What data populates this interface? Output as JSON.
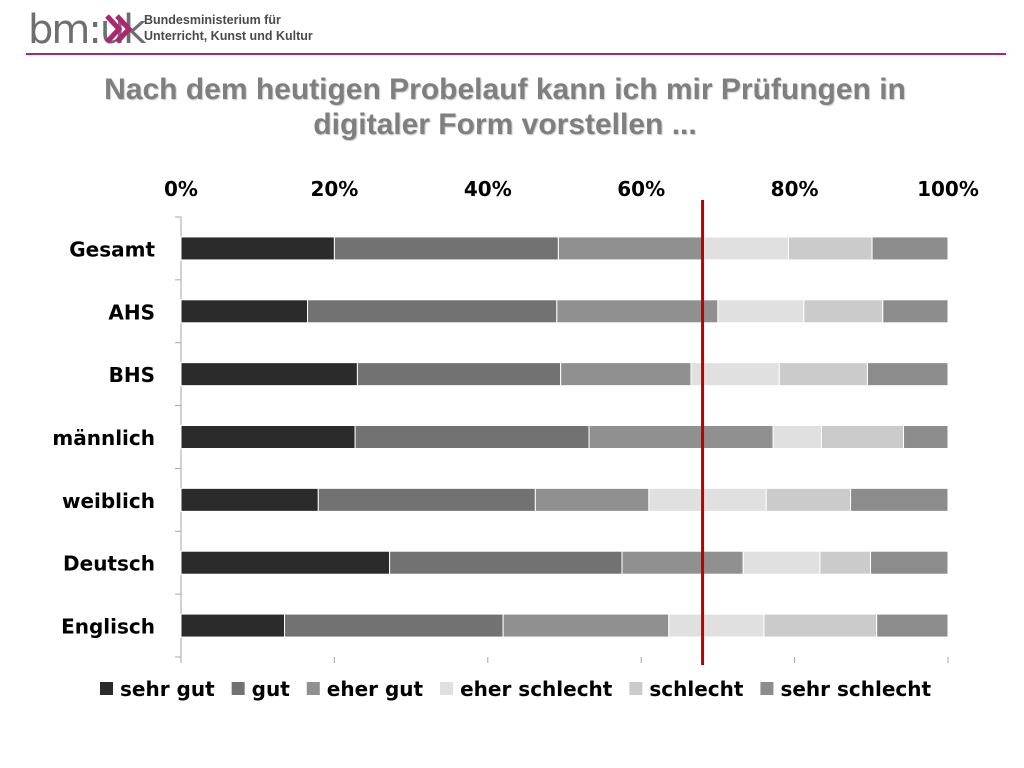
{
  "header": {
    "logo_text": "bm:uk",
    "ministry_line1": "Bundesministerium für",
    "ministry_line2": "Unterricht, Kunst und Kultur",
    "accent_color": "#b0256f"
  },
  "slide": {
    "title_line1": "Nach dem heutigen Probelauf kann ich mir Prüfungen in",
    "title_line2": "digitaler Form vorstellen  ..."
  },
  "chart_data": {
    "type": "bar",
    "orientation": "horizontal",
    "stacked": "100%",
    "categories": [
      "Gesamt",
      "AHS",
      "BHS",
      "männlich",
      "weiblich",
      "Deutsch",
      "Englisch"
    ],
    "x_ticks": [
      "0%",
      "20%",
      "40%",
      "60%",
      "80%",
      "100%"
    ],
    "xlim": [
      0,
      100
    ],
    "x_axis_position": "top",
    "grid": false,
    "legend_position": "bottom",
    "series": [
      {
        "name": "sehr gut",
        "color": "#2b2b2b",
        "values": [
          20,
          16.5,
          23,
          22.7,
          17.9,
          27.2,
          13.5
        ]
      },
      {
        "name": "gut",
        "color": "#727272",
        "values": [
          29.2,
          32.5,
          26.5,
          30.5,
          28.3,
          30.3,
          28.5
        ]
      },
      {
        "name": "eher gut",
        "color": "#909090",
        "values": [
          19,
          21,
          17,
          24,
          14.8,
          15.8,
          21.6
        ]
      },
      {
        "name": "eher schlecht",
        "color": "#e0e0e0",
        "values": [
          11,
          11.2,
          11.5,
          6.3,
          15.3,
          10,
          12.4
        ]
      },
      {
        "name": "schlecht",
        "color": "#cbcbcb",
        "values": [
          10.9,
          10.3,
          11.5,
          10.7,
          11,
          6.6,
          14.7
        ]
      },
      {
        "name": "sehr schlecht",
        "color": "#8c8c8c",
        "values": [
          9.9,
          8.5,
          10.5,
          5.8,
          12.7,
          10.1,
          9.3
        ]
      }
    ],
    "reference_line": {
      "x": 68,
      "color": "#c00000"
    }
  }
}
